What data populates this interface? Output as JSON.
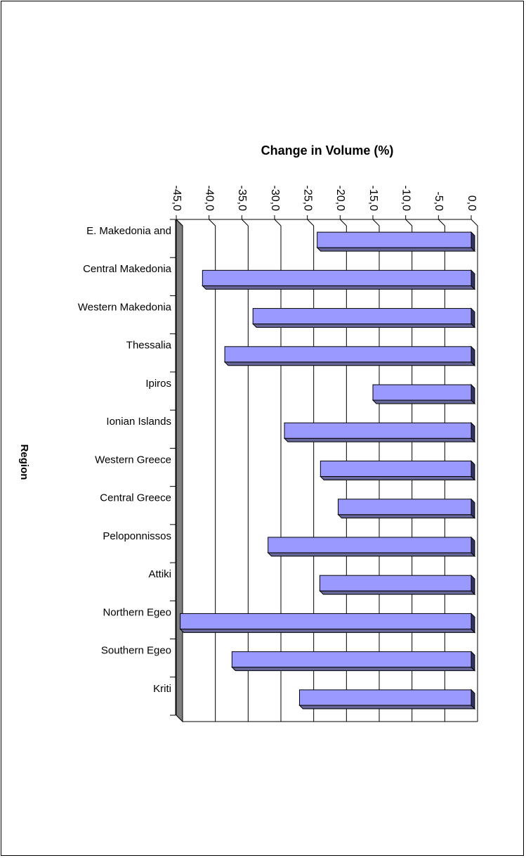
{
  "chart_data": {
    "type": "bar",
    "orientation": "horizontal",
    "title": "Change in Volume (%)",
    "ylabel": "Region",
    "xlabel": "",
    "xlim": [
      -45,
      0
    ],
    "tick_step": 5,
    "tick_labels": [
      "-45,0",
      "-40,0",
      "-35,0",
      "-30,0",
      "-25,0",
      "-20,0",
      "-15,0",
      "-10,0",
      "-5,0",
      "0,0"
    ],
    "grid": true,
    "legend": "none",
    "categories": [
      "E. Makedonia and",
      "Central Makedonia",
      "Western Makedonia",
      "Thessalia",
      "Ipiros",
      "Ionian Islands",
      "Western Greece",
      "Central Greece",
      "Peloponnissos",
      "Attiki",
      "Northern Egeo",
      "Southern Egeo",
      "Kriti"
    ],
    "values": [
      -23.5,
      -41.0,
      -33.3,
      -37.6,
      -15.0,
      -28.5,
      -23.0,
      -20.3,
      -31.0,
      -23.1,
      -44.4,
      -36.5,
      -26.2
    ],
    "colors": {
      "bar": "#9999ff",
      "bar_side": "#666699",
      "bar_end": "#333366",
      "wall": "#808080"
    }
  }
}
